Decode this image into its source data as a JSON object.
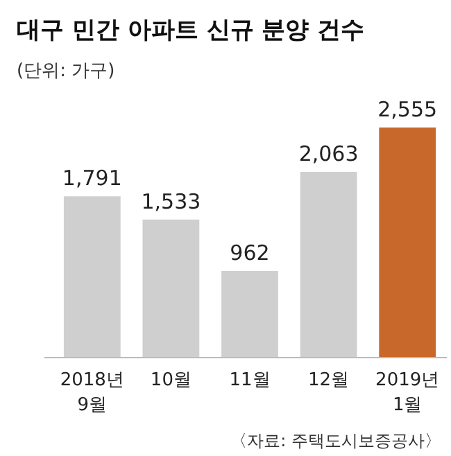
{
  "chart_data": {
    "type": "bar",
    "title": "대구 민간 아파트 신규 분양 건수",
    "subtitle": "(단위: 가구)",
    "categories": [
      "2018년 9월",
      "10월",
      "11월",
      "12월",
      "2019년 1월"
    ],
    "values": [
      1791,
      1533,
      962,
      2063,
      2555
    ],
    "value_labels": [
      "1,791",
      "1,533",
      "962",
      "2,063",
      "2,555"
    ],
    "colors": [
      "#cfcfcf",
      "#cfcfcf",
      "#cfcfcf",
      "#cfcfcf",
      "#c8692b"
    ],
    "annotations": [
      "〈자료: 주택도시보증공사〉"
    ]
  }
}
